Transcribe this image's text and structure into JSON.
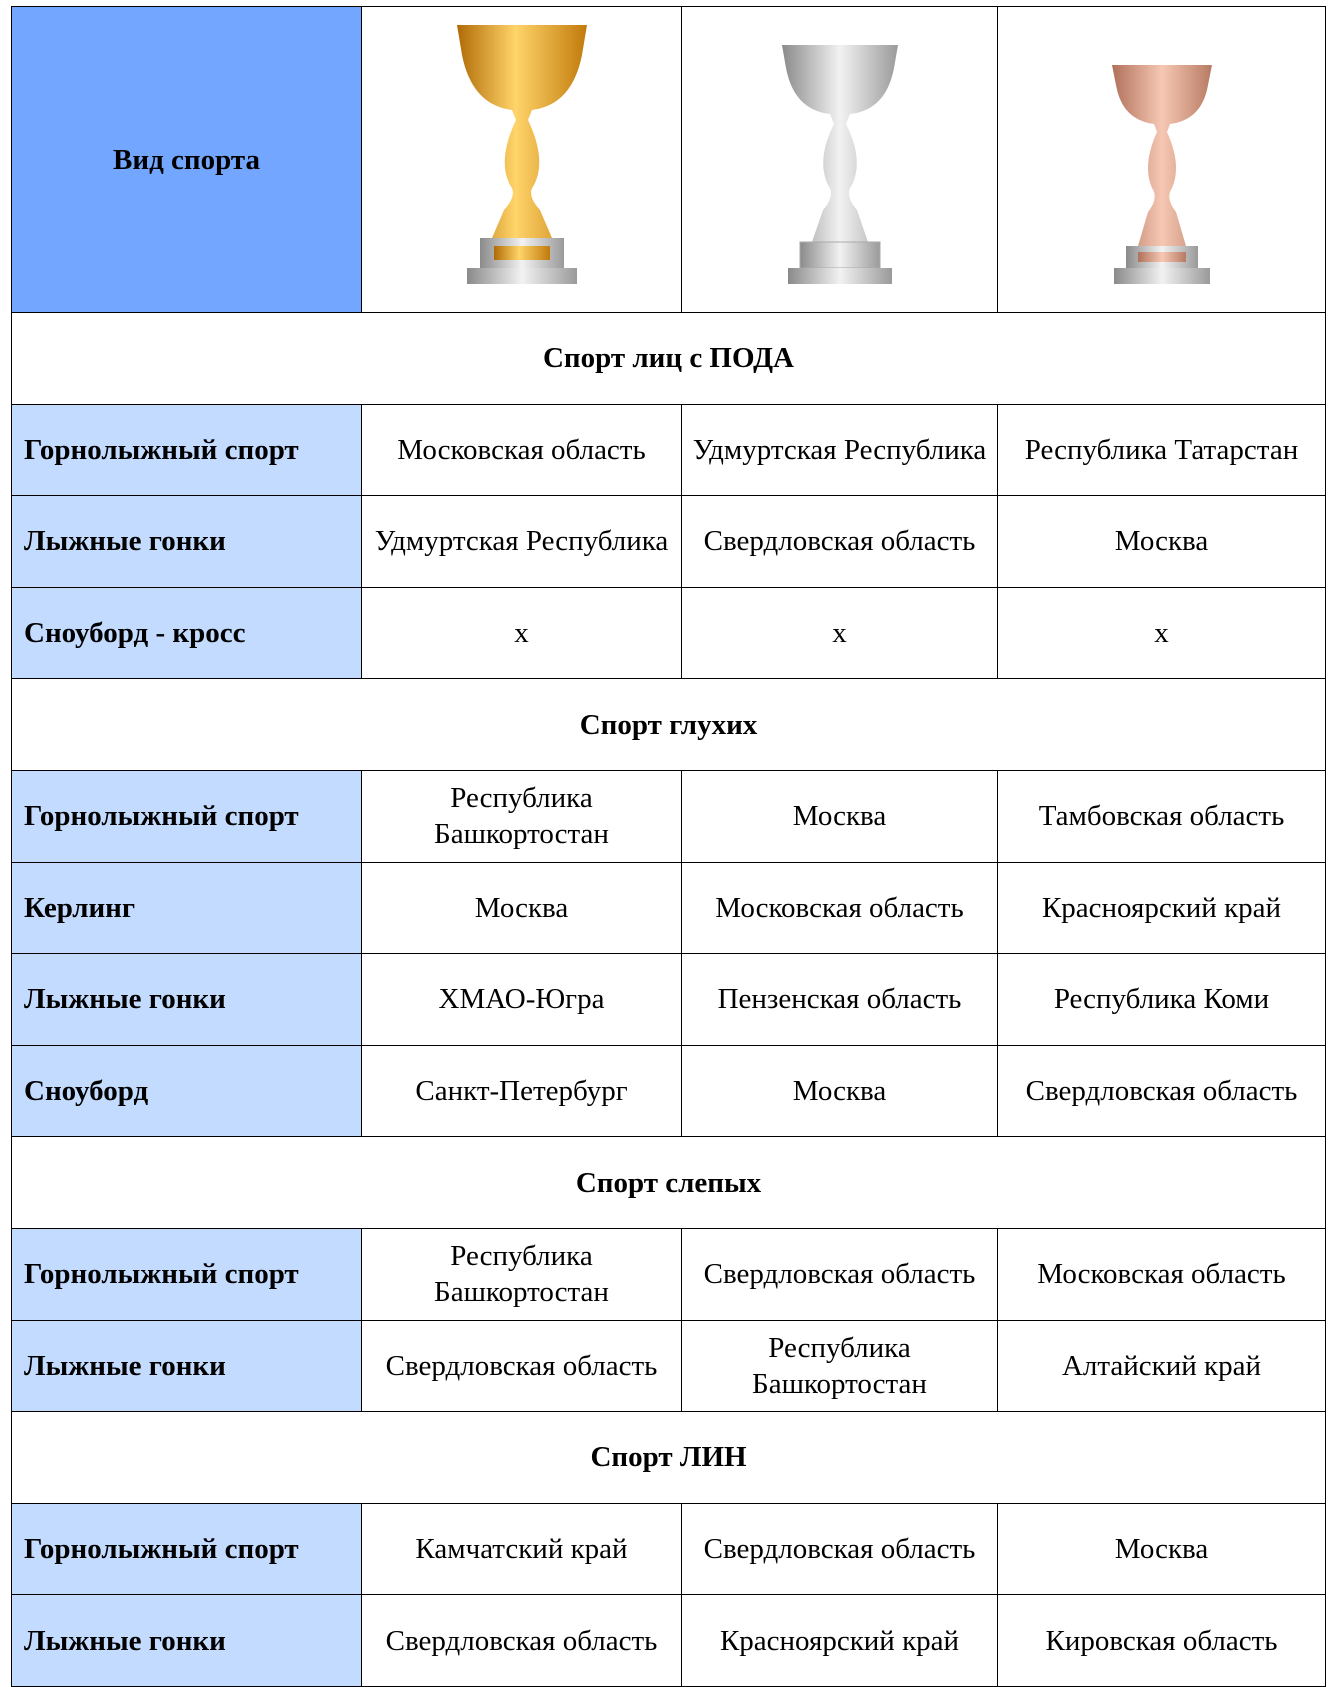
{
  "header": {
    "sport_label": "Вид спорта"
  },
  "sections": [
    {
      "title": "Спорт лиц с ПОДА",
      "rows": [
        [
          "Горнолыжный спорт",
          "Московская область",
          "Удмуртская Республика",
          "Республика Татарстан"
        ],
        [
          "Лыжные гонки",
          "Удмуртская Республика",
          "Свердловская область",
          "Москва"
        ],
        [
          "Сноуборд - кросс",
          "х",
          "х",
          "х"
        ]
      ]
    },
    {
      "title": "Спорт глухих",
      "rows": [
        [
          "Горнолыжный спорт",
          "Республика Башкортостан",
          "Москва",
          "Тамбовская область"
        ],
        [
          "Керлинг",
          "Москва",
          "Московская область",
          "Красноярский край"
        ],
        [
          "Лыжные гонки",
          "ХМАО-Югра",
          "Пензенская область",
          "Республика Коми"
        ],
        [
          "Сноуборд",
          "Санкт-Петербург",
          "Москва",
          "Свердловская область"
        ]
      ]
    },
    {
      "title": "Спорт слепых",
      "rows": [
        [
          "Горнолыжный спорт",
          "Республика Башкортостан",
          "Свердловская область",
          "Московская область"
        ],
        [
          "Лыжные гонки",
          "Свердловская область",
          "Республика Башкортостан",
          "Алтайский край"
        ]
      ]
    },
    {
      "title": "Спорт ЛИН",
      "rows": [
        [
          "Горнолыжный спорт",
          "Камчатский край",
          "Свердловская область",
          "Москва"
        ],
        [
          "Лыжные гонки",
          "Свердловская область",
          "Красноярский край",
          "Кировская область"
        ]
      ]
    }
  ]
}
